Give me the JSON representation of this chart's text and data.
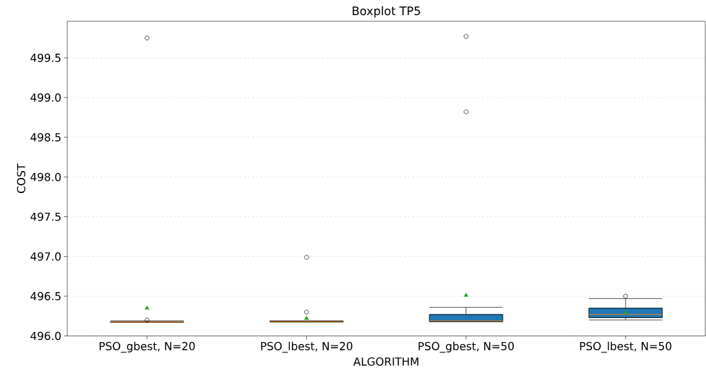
{
  "chart_data": {
    "type": "box",
    "title": "Boxplot TP5",
    "xlabel": "ALGORITHM",
    "ylabel": "COST",
    "categories": [
      "PSO_gbest, N=20",
      "PSO_lbest, N=20",
      "PSO_gbest, N=50",
      "PSO_lbest, N=50"
    ],
    "color": "#1f77b4",
    "boxes": [
      {
        "low": 496.17,
        "q1": 496.175,
        "median": 496.175,
        "q3": 496.18,
        "high": 496.19,
        "mean": 496.35,
        "outliers": [
          496.2,
          499.75
        ]
      },
      {
        "low": 496.175,
        "q1": 496.175,
        "median": 496.18,
        "q3": 496.185,
        "high": 496.19,
        "mean": 496.22,
        "outliers": [
          496.3,
          496.99
        ]
      },
      {
        "low": 496.18,
        "q1": 496.18,
        "median": 496.19,
        "q3": 496.27,
        "high": 496.36,
        "mean": 496.51,
        "outliers": [
          498.82,
          499.77
        ]
      },
      {
        "low": 496.2,
        "q1": 496.23,
        "median": 496.27,
        "q3": 496.35,
        "high": 496.47,
        "mean": 496.29,
        "outliers": [
          496.5
        ]
      }
    ],
    "ylim": [
      496.0,
      499.96
    ],
    "yticks": [
      {
        "value": 496.0,
        "label": "496.0"
      },
      496.5,
      {
        "value": 497.0,
        "label": "497.0"
      },
      497.5,
      {
        "value": 498.0,
        "label": "498.0"
      },
      498.5,
      {
        "value": 499.0,
        "label": "499.0"
      },
      499.5
    ],
    "grid": "y"
  }
}
